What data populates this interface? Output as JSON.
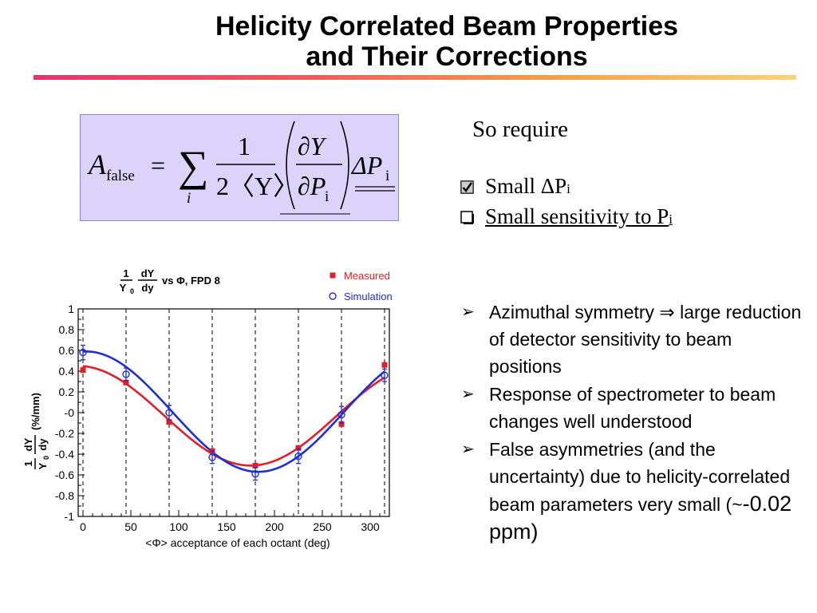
{
  "title": {
    "line1": "Helicity Correlated Beam Properties",
    "line2": "and Their Corrections"
  },
  "formula": {
    "A": "A",
    "sub_false": "false",
    "equals": "=",
    "sum": "∑",
    "sum_index": "i",
    "numerator_one": "1",
    "denominator": "2〈Y〉",
    "partial_Y": "∂Y",
    "partial_P": "∂P",
    "sub_i": "i",
    "delta_P": "ΔP",
    "delta_sub": "i"
  },
  "right": {
    "so_require": "So require",
    "req1_text": "Small ΔP",
    "req1_sub": "i",
    "req2_text": "Small sensitivity to P",
    "req2_sub": "i",
    "req1_state": "checked",
    "req2_state": "unchecked"
  },
  "bullets": [
    {
      "text": "Azimuthal symmetry ⇒ large reduction of detector sensitivity to beam positions"
    },
    {
      "text": "Response of spectrometer to beam changes well understood"
    },
    {
      "text": "False asymmetries (and the uncertainty) due to helicity-correlated beam parameters very small (~",
      "big": "-0.02 ppm)"
    }
  ],
  "chart_data": {
    "type": "scatter",
    "title_parts": {
      "frac_num": "1",
      "frac_den": "Y",
      "frac_den_sub": "0",
      "deriv_num": "dY",
      "deriv_den": "dy",
      "rest": "vs Φ, FPD 8"
    },
    "ylabel_parts": {
      "frac_num": "1",
      "frac_den": "Y",
      "frac_den_sub": "0",
      "deriv_num": "dY",
      "deriv_den": "dy",
      "unit": "(%/mm)"
    },
    "xlabel": "<Φ> acceptance of each octant (deg)",
    "xlim": [
      -5,
      320
    ],
    "ylim": [
      -1,
      1
    ],
    "xticks": [
      0,
      50,
      100,
      150,
      200,
      250,
      300
    ],
    "xtick_labels": [
      "0",
      "50",
      "100",
      "150",
      "200",
      "250",
      "300"
    ],
    "yticks": [
      1,
      0.8,
      0.6,
      0.4,
      0.2,
      0,
      -0.2,
      -0.4,
      -0.6,
      -0.8,
      -1
    ],
    "ytick_labels": [
      "1",
      "0.8",
      "0.6",
      "0.4",
      "0.2",
      "-0",
      "-0.2",
      "-0.4",
      "-0.6",
      "-0.8",
      "-1"
    ],
    "dashed_x": [
      0,
      45,
      90,
      135,
      180,
      225,
      270,
      315
    ],
    "series": [
      {
        "name": "Measured",
        "color": "#e21f26",
        "marker": "filled-square",
        "x": [
          0,
          45,
          90,
          135,
          180,
          225,
          270,
          315
        ],
        "y": [
          0.41,
          0.29,
          -0.09,
          -0.37,
          -0.51,
          -0.34,
          -0.11,
          0.46
        ],
        "fit": {
          "offset": -0.03,
          "amp": 0.48,
          "phase_deg": -5
        }
      },
      {
        "name": "Simulation",
        "color": "#1f2fd6",
        "marker": "open-circle",
        "x": [
          0,
          45,
          90,
          135,
          180,
          225,
          270,
          315
        ],
        "y": [
          0.58,
          0.37,
          0.0,
          -0.43,
          -0.59,
          -0.42,
          -0.02,
          0.36
        ],
        "yerr": [
          0.07,
          0.06,
          0.07,
          0.06,
          0.06,
          0.07,
          0.08,
          0.06
        ],
        "fit": {
          "offset": 0.01,
          "amp": 0.58,
          "phase_deg": 3
        }
      }
    ],
    "legend_position": "top-right",
    "grid": false
  }
}
